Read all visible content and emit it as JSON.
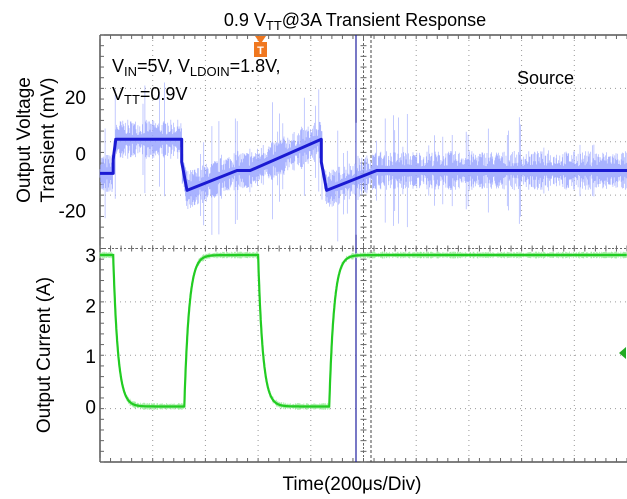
{
  "title": {
    "p1": "0.9 V",
    "p1_sub": "TT",
    "p2": "@3A Transient Response"
  },
  "annotation": {
    "line1": {
      "a": "V",
      "a_sub": "IN",
      "b": "=5V, V",
      "b_sub": "LDOIN",
      "c": "=1.8V,"
    },
    "line2": {
      "a": "V",
      "a_sub": "TT",
      "b": "=0.9V"
    },
    "source_label": "Source",
    "trigger_marker": "T"
  },
  "x_label": "Time(200μs/Div)",
  "colors": {
    "voltage": "#1a1ad2",
    "voltage_noise": "#9aa6ff",
    "current": "#22cc22",
    "trigger": "#f07820",
    "grid": "#9a9a9a"
  },
  "chart_data": [
    {
      "type": "line",
      "ylabel_line1": "Output Voltage",
      "ylabel_line2": "Transient (mV)",
      "yticks": [
        20,
        0,
        -20
      ],
      "ylim": [
        -34,
        40
      ],
      "x_divisions": 10,
      "x_unit": "200μs/div",
      "x": [
        0,
        0.25,
        0.25,
        0.3,
        1.55,
        1.55,
        1.65,
        2.6,
        2.6,
        2.8,
        2.85,
        4.2,
        4.2,
        4.3,
        5.25,
        5.25,
        5.45,
        5.5,
        6.4
      ],
      "values": [
        -7,
        -7,
        -2,
        5,
        5,
        -3,
        -13,
        -6,
        -6,
        -6,
        -6,
        5,
        -3,
        -13,
        -6,
        -6,
        -6,
        -6,
        -6
      ],
      "series_name": "",
      "noise_band_mV": 3
    },
    {
      "type": "line",
      "ylabel": "Output Current (A)",
      "yticks": [
        3,
        2,
        1,
        0
      ],
      "ylim": [
        -1.1,
        3.1
      ],
      "x_divisions": 10,
      "x_unit": "200μs/div",
      "falling_edges_div": [
        0.25,
        3.0
      ],
      "rising_edges_div": [
        1.6,
        4.35
      ],
      "high_A": 3.0,
      "low_A": 0.0,
      "time_constant_div": 0.09,
      "series_name": ""
    }
  ]
}
